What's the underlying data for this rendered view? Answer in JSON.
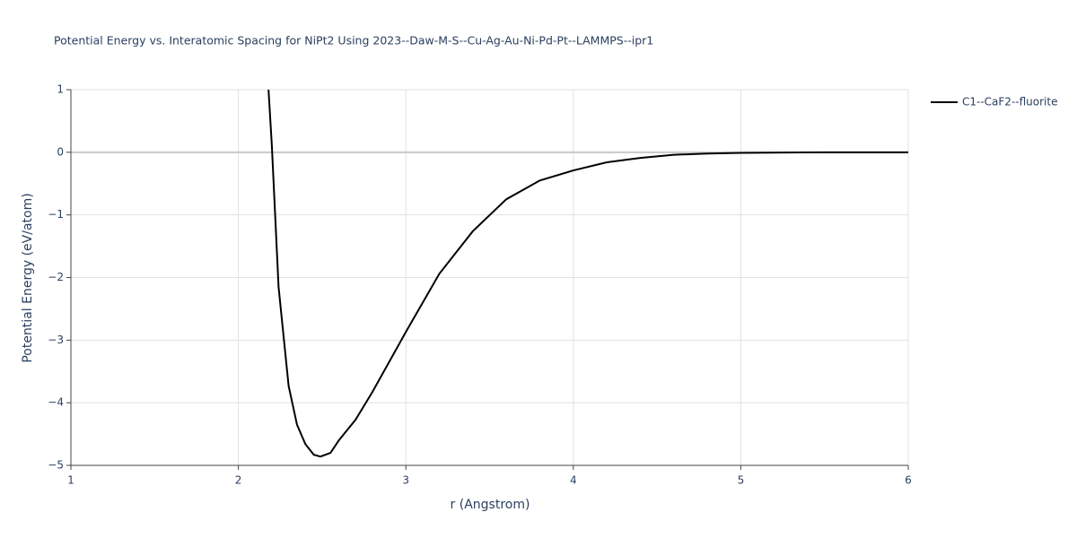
{
  "chart_data": {
    "type": "line",
    "title": "Potential Energy vs. Interatomic Spacing for NiPt2 Using 2023--Daw-M-S--Cu-Ag-Au-Ni-Pd-Pt--LAMMPS--ipr1",
    "x_label": "r (Angstrom)",
    "y_label": "Potential Energy (eV/atom)",
    "x": [
      2.18,
      2.2,
      2.24,
      2.3,
      2.35,
      2.4,
      2.45,
      2.49,
      2.55,
      2.6,
      2.7,
      2.8,
      3.0,
      3.2,
      3.4,
      3.6,
      3.8,
      4.0,
      4.2,
      4.4,
      4.6,
      4.8,
      5.0,
      5.5,
      6.0
    ],
    "series": [
      {
        "name": "C1--CaF2--fluorite",
        "color": "#000000",
        "values": [
          1.0,
          0.1,
          -2.15,
          -3.73,
          -4.35,
          -4.66,
          -4.83,
          -4.86,
          -4.8,
          -4.6,
          -4.27,
          -3.83,
          -2.87,
          -1.94,
          -1.26,
          -0.75,
          -0.45,
          -0.29,
          -0.16,
          -0.09,
          -0.04,
          -0.02,
          -0.01,
          0,
          0
        ]
      }
    ],
    "xlim": [
      1,
      6
    ],
    "xticks": [
      1,
      2,
      3,
      4,
      5,
      6
    ],
    "ylim": [
      -5,
      1
    ],
    "yticks": [
      {
        "value": -5,
        "label": "−5"
      },
      {
        "value": -4,
        "label": "−4"
      },
      {
        "value": -3,
        "label": "−3"
      },
      {
        "value": -2,
        "label": "−2"
      },
      {
        "value": -1,
        "label": "−1"
      },
      0,
      1
    ],
    "grid": true,
    "legend": "right"
  }
}
